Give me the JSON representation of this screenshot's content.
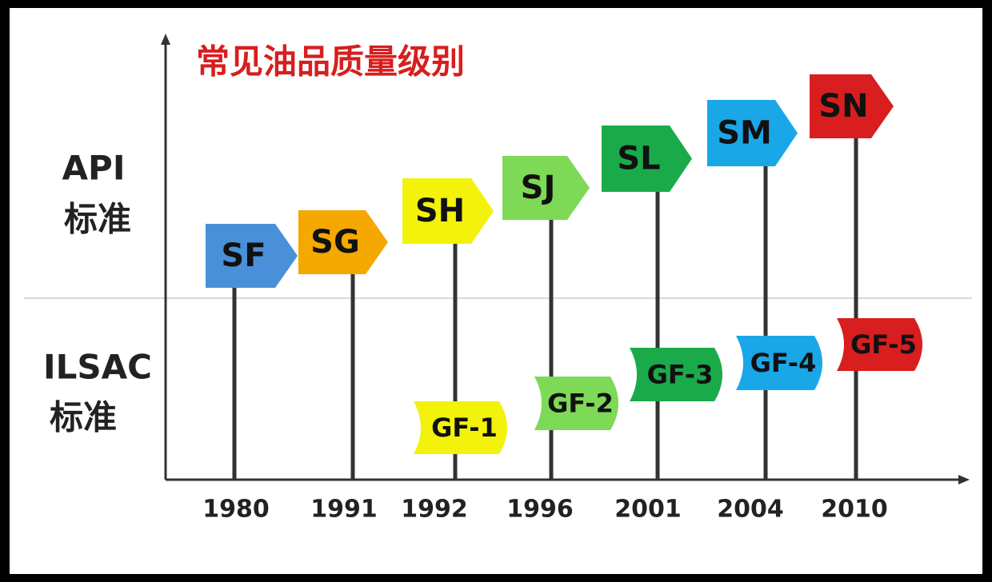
{
  "title": "常见油品质量级别",
  "row_labels": {
    "api": [
      "API",
      "标准"
    ],
    "ilsac": [
      "ILSAC",
      "标准"
    ]
  },
  "years": [
    "1980",
    "1991",
    "1992",
    "1996",
    "2001",
    "2004",
    "2010"
  ],
  "api": [
    "SF",
    "SG",
    "SH",
    "SJ",
    "SL",
    "SM",
    "SN"
  ],
  "ilsac": [
    "GF-1",
    "GF-2",
    "GF-3",
    "GF-4",
    "GF-5"
  ]
}
